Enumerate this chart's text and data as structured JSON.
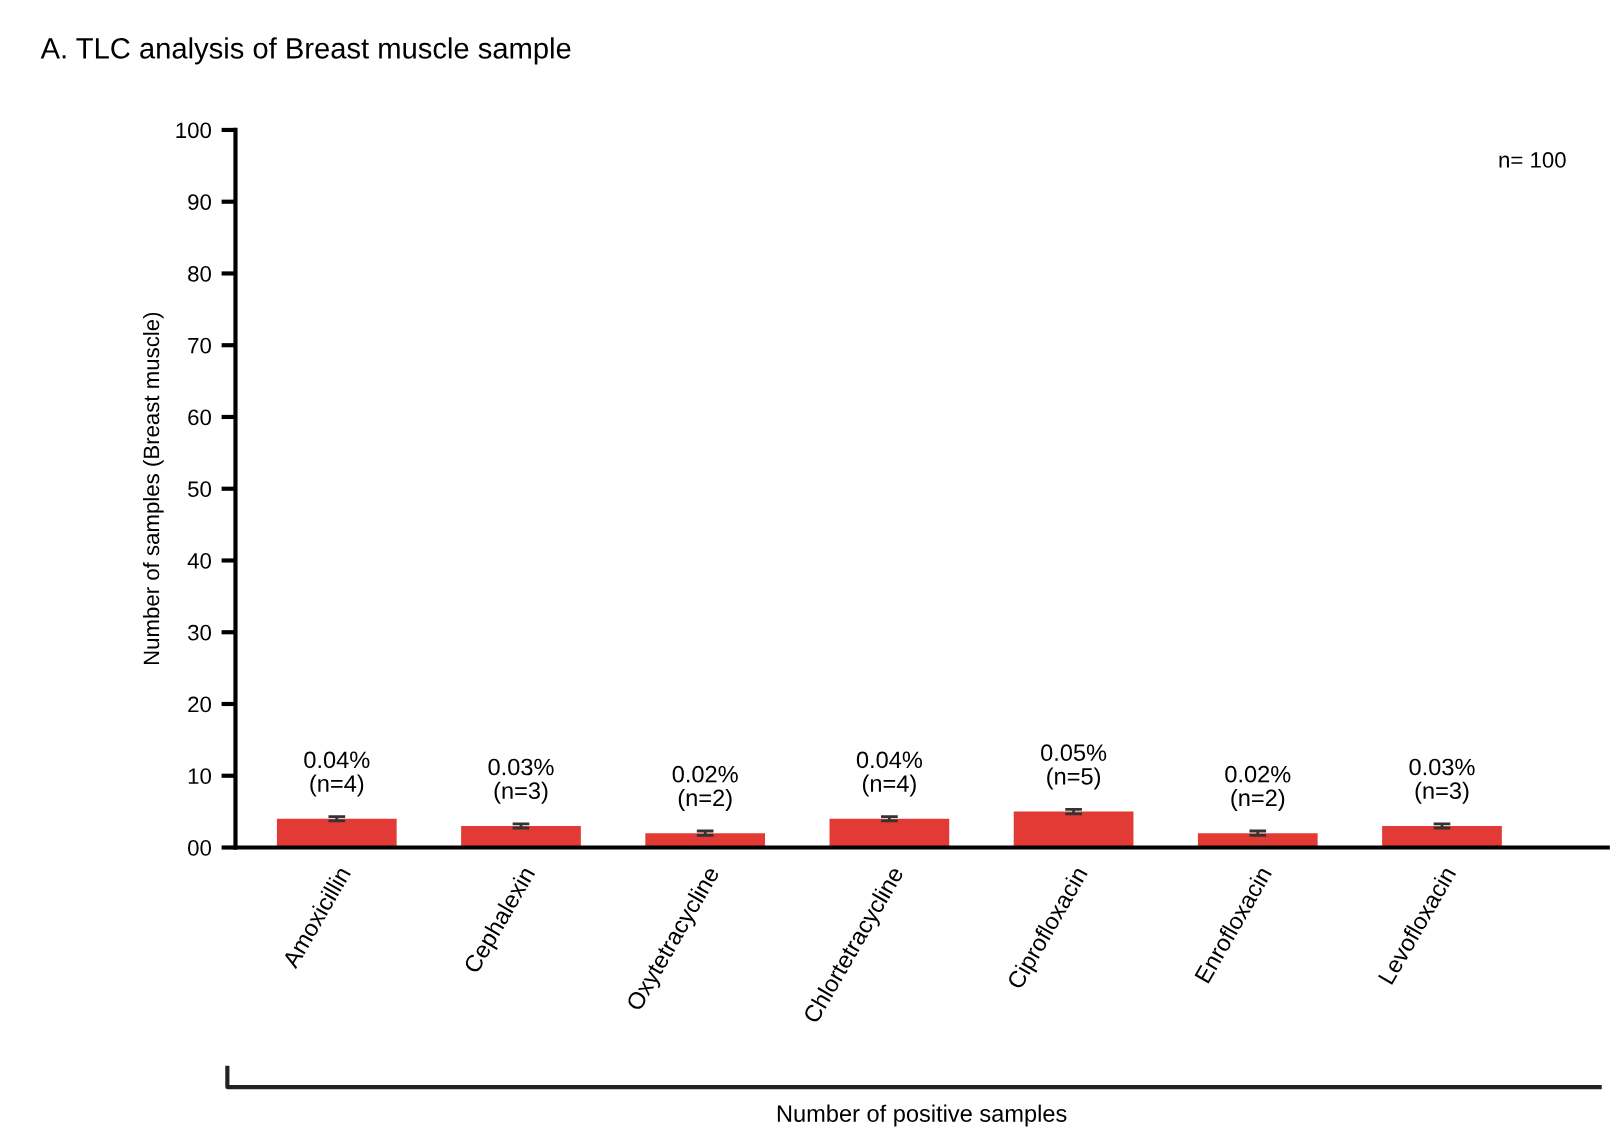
{
  "chart_data": {
    "type": "bar",
    "title": "A. TLC analysis of Breast muscle sample",
    "ylabel": "Number of samples (Breast muscle)",
    "xlabel": "Number of positive samples",
    "categories": [
      "Amoxicillin",
      "Cephalexin",
      "Oxytetracycline",
      "Chlortetracycline",
      "Ciprofloxacin",
      "Enrofloxacin",
      "Levofloxacin"
    ],
    "values": [
      4,
      3,
      2,
      4,
      5,
      2,
      3
    ],
    "errors": [
      0.3,
      0.3,
      0.3,
      0.3,
      0.3,
      0.3,
      0.3
    ],
    "value_labels": [
      "0.04%\n(n=4)",
      "0.03%\n(n=3)",
      "0.02%\n(n=2)",
      "0.04%\n(n=4)",
      "0.05%\n(n=5)",
      "0.02%\n(n=2)",
      "0.03%\n(n=3)"
    ],
    "color": "#e23b35",
    "ylim": [
      0,
      100
    ],
    "yticks": [
      {
        "value": 0,
        "label": "00"
      },
      10,
      20,
      30,
      40,
      50,
      60,
      70,
      80,
      90,
      100
    ],
    "annotations": [
      "n= 100"
    ],
    "grid": false,
    "legend": false
  }
}
